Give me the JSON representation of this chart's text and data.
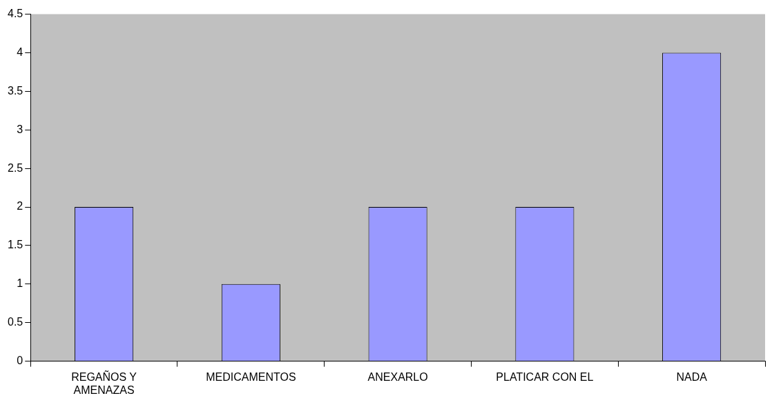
{
  "chart_data": {
    "type": "bar",
    "categories": [
      "REGAÑOS Y AMENAZAS",
      "MEDICAMENTOS",
      "ANEXARLO",
      "PLATICAR CON EL",
      "NADA"
    ],
    "values": [
      2,
      1,
      2,
      2,
      4
    ],
    "color": "#9999ff",
    "ylim": [
      0,
      4.5
    ],
    "yticks": [
      0,
      0.5,
      1,
      1.5,
      2,
      2.5,
      3,
      3.5,
      4,
      4.5
    ]
  }
}
